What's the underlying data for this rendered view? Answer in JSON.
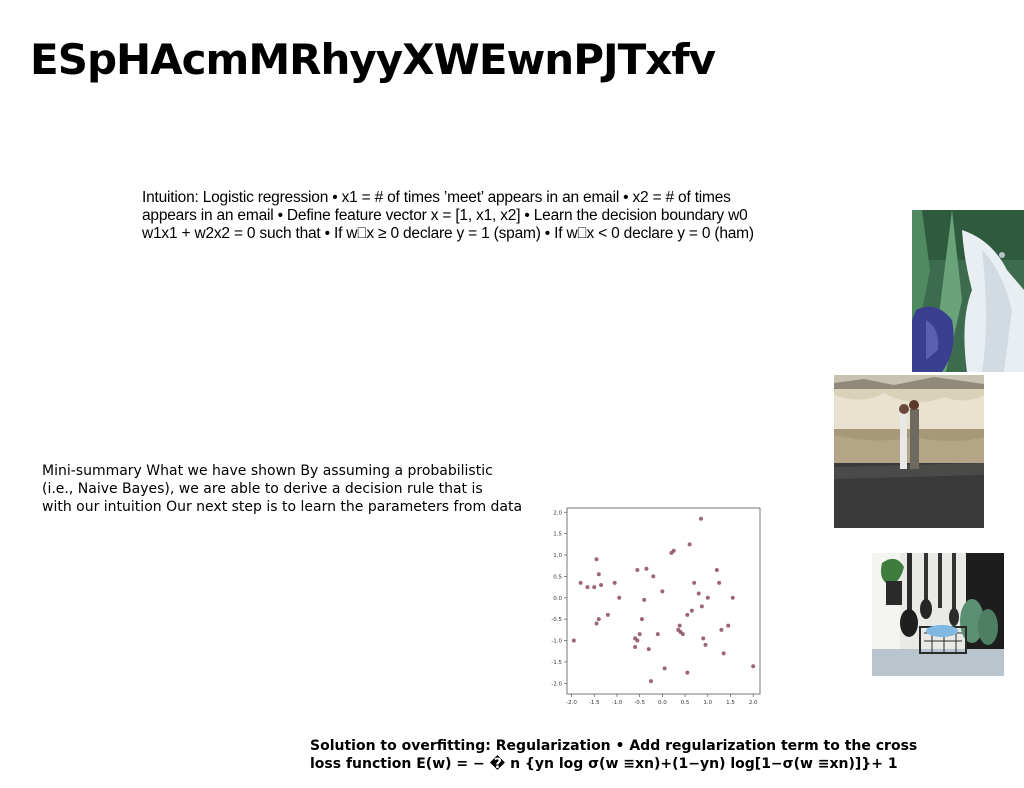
{
  "slide": {
    "title": "ESpHAcmMRhyyXWEwnPJTxfv",
    "intuition_lines": [
      "Intuition: Logistic regression • x1 = # of times ’meet’ appears in an email • x2 = # of times",
      "appears in an email • Define feature vector x = [1, x1, x2] • Learn the decision boundary w0",
      "w1x1 + w2x2 = 0 such that • If w⎕x ≥ 0 declare y = 1 (spam) • If w⎕x < 0 declare y = 0 (ham)"
    ],
    "summary_lines": [
      "Mini-summary What we have shown By assuming a probabilistic",
      "(i.e., Naive Bayes), we are able to derive a decision rule that is",
      "with our intuition Our next step is to learn the parameters from data"
    ],
    "solution_lines": [
      "Solution to overfitting: Regularization • Add regularization term to the cross",
      "loss function E(w) = − � n {yn log σ(w ≡xn)+(1−yn) log[1−σ(w ≡xn)]}+ 1"
    ]
  },
  "images": {
    "photo1": "laundry-clothes-photo",
    "photo2": "couple-by-lake-photo",
    "photo3": "kitchen-shelf-photo"
  },
  "chart_data": {
    "type": "scatter",
    "title": "",
    "xlabel": "",
    "ylabel": "",
    "xlim": [
      -2.1,
      2.15
    ],
    "ylim": [
      -2.25,
      2.1
    ],
    "xticks": [
      "-2.0",
      "-1.5",
      "-1.0",
      "-0.5",
      "0.0",
      "0.5",
      "1.0",
      "1.5",
      "2.0"
    ],
    "yticks": [
      "2.0",
      "1.5",
      "1.0",
      "0.5",
      "0.0",
      "-0.5",
      "-1.0",
      "-1.5",
      "-2.0"
    ],
    "grid": false,
    "color": "#8b4a62",
    "x": [
      -1.95,
      -1.8,
      -1.65,
      -1.5,
      -1.45,
      -1.4,
      -1.45,
      -1.4,
      -1.35,
      -1.2,
      -1.05,
      -0.95,
      -0.6,
      -0.55,
      -0.6,
      -0.55,
      -0.5,
      -0.45,
      -0.4,
      -0.35,
      -0.3,
      -0.2,
      -0.1,
      0.0,
      0.05,
      0.2,
      0.25,
      0.35,
      0.38,
      0.4,
      0.45,
      0.55,
      0.6,
      0.65,
      0.7,
      0.8,
      0.85,
      0.87,
      0.9,
      0.95,
      1.0,
      1.2,
      1.25,
      1.3,
      1.35,
      1.45,
      1.55,
      2.0,
      0.55,
      -0.25
    ],
    "y": [
      -1.0,
      0.35,
      0.25,
      0.25,
      0.9,
      0.55,
      -0.6,
      -0.5,
      0.3,
      -0.4,
      0.35,
      0.0,
      -0.95,
      -1.0,
      -1.15,
      0.65,
      -0.85,
      -0.5,
      -0.05,
      0.68,
      -1.2,
      0.5,
      -0.85,
      0.15,
      -1.65,
      1.05,
      1.1,
      -0.75,
      -0.65,
      -0.8,
      -0.85,
      -0.4,
      1.25,
      -0.3,
      0.35,
      0.1,
      1.85,
      -0.2,
      -0.95,
      -1.1,
      0.0,
      0.65,
      0.35,
      -0.75,
      -1.3,
      -0.65,
      0.0,
      -1.6,
      -1.75,
      -1.95
    ]
  }
}
